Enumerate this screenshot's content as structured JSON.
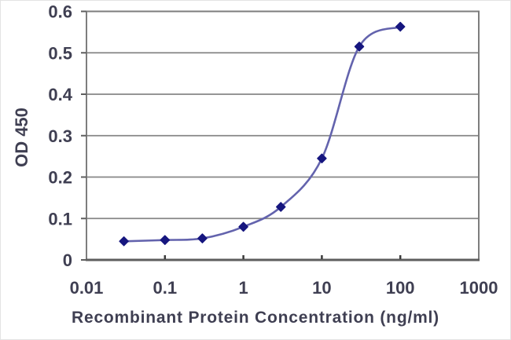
{
  "chart_data": {
    "type": "line",
    "title": "",
    "xlabel": "Recombinant Protein Concentration (ng/ml)",
    "ylabel": "OD 450",
    "x_scale": "log",
    "xlim": [
      0.01,
      1000
    ],
    "ylim": [
      0,
      0.6
    ],
    "x_tick_values": [
      0.01,
      0.1,
      1,
      10,
      100,
      1000
    ],
    "x_tick_labels": [
      "0.01",
      "0.1",
      "1",
      "10",
      "100",
      "1000"
    ],
    "y_tick_values": [
      0,
      0.1,
      0.2,
      0.3,
      0.4,
      0.5,
      0.6
    ],
    "y_tick_labels": [
      "0",
      "0.1",
      "0.2",
      "0.3",
      "0.4",
      "0.5",
      "0.6"
    ],
    "grid": "horizontal",
    "legend": "none",
    "series": [
      {
        "name": "OD 450",
        "marker": "diamond",
        "line_style": "smooth",
        "x": [
          0.03,
          0.1,
          0.3,
          1,
          3,
          10,
          30,
          100
        ],
        "y": [
          0.045,
          0.048,
          0.052,
          0.08,
          0.128,
          0.245,
          0.515,
          0.563
        ]
      }
    ],
    "colors": {
      "line": "#6363ad",
      "marker": "#16167f",
      "grid": "#868686",
      "border": "#7d7d7d",
      "axis": "#5e5e5e",
      "tick": "#3a3a3a",
      "text": "#3f3f52",
      "background": "#ffffff"
    }
  }
}
